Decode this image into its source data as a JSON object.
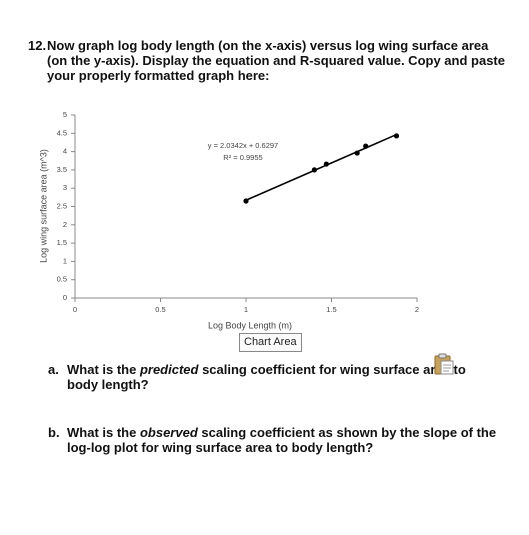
{
  "question": {
    "number": "12.",
    "text": "Now graph log body length (on the x-axis) versus log wing surface area (on the y-axis). Display the equation and R-squared value. Copy and paste your properly formatted graph here:"
  },
  "chart_data": {
    "type": "scatter",
    "x_label": "Log Body Length (m)",
    "y_label": "Log wing surface area (m^3)",
    "equation": "y = 2.0342x + 0.6297",
    "r_squared": "R² = 0.9955",
    "x": [
      1.0,
      1.4,
      1.47,
      1.65,
      1.7,
      1.88
    ],
    "values": [
      2.65,
      3.5,
      3.66,
      3.96,
      4.15,
      4.43
    ],
    "color": "#000000",
    "trendline": true,
    "xlim": [
      0,
      2
    ],
    "xticks": [
      0,
      0.5,
      1,
      1.5,
      2
    ],
    "ylim": [
      0,
      5
    ],
    "yticks": [
      0,
      0.5,
      1,
      1.5,
      2,
      2.5,
      3,
      3.5,
      4,
      4.5,
      5
    ]
  },
  "tooltip": "Chart Area",
  "questions": [
    {
      "label": "a.",
      "parts": [
        "What is the ",
        "predicted",
        " scaling coefficient for wing surface area to body length?"
      ]
    },
    {
      "label": "b.",
      "parts": [
        "What is the ",
        "observed",
        " scaling coefficient as shown by the slope of the log-log plot for wing surface area to body length?"
      ]
    }
  ]
}
